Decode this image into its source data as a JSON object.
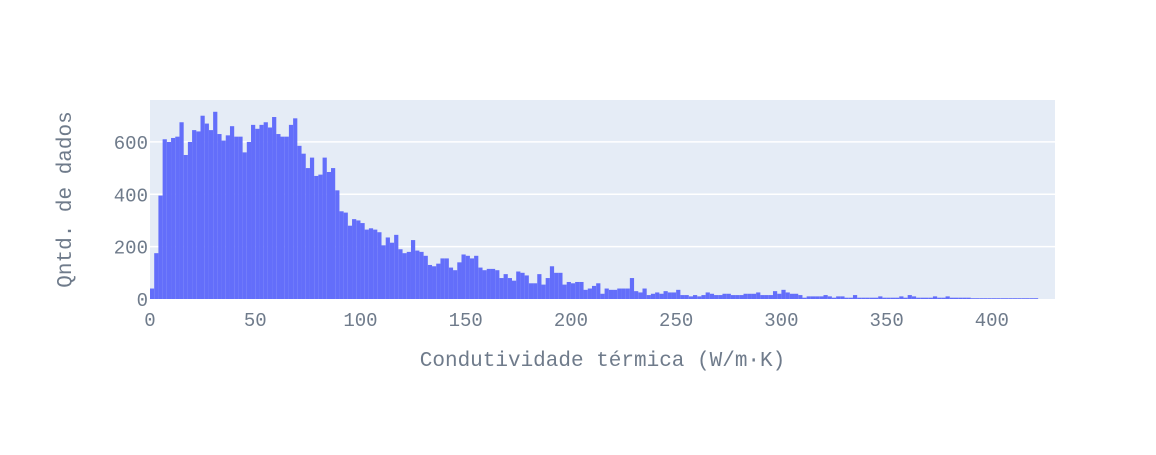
{
  "chart_data": {
    "type": "bar",
    "title": "",
    "xlabel": "Condutividade térmica (W/m·K)",
    "ylabel": "Qntd. de dados",
    "xlim": [
      0,
      430
    ],
    "ylim": [
      0,
      760
    ],
    "bin_width": 2,
    "bin_start": 0,
    "x_ticks": [
      0,
      50,
      100,
      150,
      200,
      250,
      300,
      350,
      400
    ],
    "y_ticks": [
      0,
      200,
      400,
      600
    ],
    "grid": true,
    "bar_color": "#636efa",
    "plot_bg_color": "#e5ecf6",
    "values": [
      40,
      175,
      395,
      610,
      600,
      615,
      620,
      675,
      550,
      600,
      645,
      640,
      700,
      670,
      645,
      715,
      630,
      605,
      625,
      660,
      620,
      620,
      560,
      600,
      665,
      650,
      665,
      675,
      655,
      695,
      630,
      620,
      620,
      665,
      690,
      585,
      555,
      500,
      540,
      470,
      475,
      540,
      485,
      500,
      415,
      335,
      330,
      280,
      305,
      300,
      290,
      265,
      270,
      265,
      255,
      205,
      235,
      215,
      245,
      190,
      175,
      180,
      225,
      185,
      180,
      165,
      130,
      125,
      135,
      155,
      155,
      120,
      110,
      140,
      170,
      165,
      155,
      165,
      120,
      110,
      115,
      115,
      110,
      80,
      95,
      80,
      70,
      105,
      100,
      90,
      60,
      60,
      95,
      55,
      80,
      125,
      100,
      100,
      55,
      65,
      60,
      65,
      65,
      35,
      40,
      50,
      60,
      20,
      40,
      35,
      35,
      40,
      40,
      40,
      80,
      30,
      25,
      40,
      15,
      20,
      25,
      20,
      30,
      25,
      25,
      35,
      15,
      15,
      10,
      15,
      10,
      15,
      25,
      20,
      15,
      15,
      20,
      20,
      15,
      15,
      15,
      20,
      20,
      20,
      25,
      15,
      15,
      15,
      30,
      20,
      35,
      25,
      20,
      20,
      15,
      5,
      10,
      10,
      10,
      10,
      15,
      10,
      5,
      10,
      10,
      5,
      5,
      15,
      5,
      5,
      5,
      5,
      5,
      10,
      5,
      5,
      5,
      5,
      10,
      5,
      15,
      10,
      5,
      5,
      5,
      5,
      10,
      5,
      5,
      10,
      5,
      5,
      5,
      5,
      5,
      3,
      3,
      3,
      3,
      3,
      3,
      3,
      3,
      3,
      3,
      3,
      3,
      3,
      3,
      3,
      3
    ]
  }
}
